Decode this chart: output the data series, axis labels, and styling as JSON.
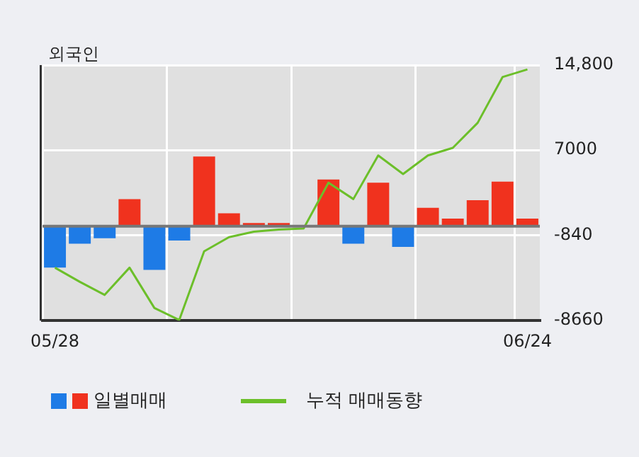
{
  "chart_data": {
    "type": "bar",
    "title": "외국인",
    "categories": [
      "05/28",
      null,
      null,
      null,
      null,
      null,
      null,
      null,
      null,
      null,
      null,
      null,
      null,
      null,
      null,
      null,
      null,
      null,
      null,
      "06/24"
    ],
    "series": [
      {
        "name": "일별매매",
        "colors": [
          "#1e7be6",
          "#1e7be6",
          "#1e7be6",
          "#f0321e",
          "#1e7be6",
          "#1e7be6",
          "#f0321e",
          "#f0321e",
          "#f0321e",
          "#f0321e",
          "#f0321e",
          "#f0321e",
          "#1e7be6",
          "#f0321e",
          "#1e7be6",
          "#f0321e",
          "#f0321e",
          "#f0321e",
          "#f0321e",
          "#f0321e"
        ],
        "values": [
          -3800,
          -1600,
          -1100,
          2500,
          -4000,
          -1300,
          6400,
          1200,
          300,
          300,
          0,
          4300,
          -1600,
          4000,
          -1900,
          1700,
          700,
          2400,
          4100,
          700
        ]
      },
      {
        "name": "누적 매매동향",
        "type": "line",
        "color": "#6cbf2a",
        "values": [
          -3800,
          -5100,
          -6300,
          -3800,
          -7500,
          -8600,
          -2300,
          -1000,
          -500,
          -300,
          -200,
          4000,
          2500,
          6500,
          4800,
          6500,
          7200,
          9500,
          13700,
          14400
        ]
      }
    ],
    "ylim": [
      -8660,
      14800
    ],
    "yticks": [
      -8660,
      -840,
      7000,
      {
        "value": 14800,
        "label": "14,800"
      }
    ],
    "grid": true,
    "legend": "bottom",
    "marker": "none"
  }
}
